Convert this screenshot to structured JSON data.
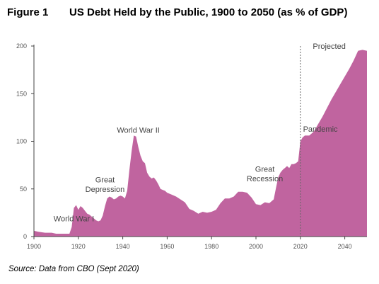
{
  "figure_label": "Figure 1",
  "source": "Source: Data from CBO (Sept 2020)",
  "chart_data": {
    "type": "area",
    "title": "US Debt Held by the Public, 1900 to 2050 (as % of GDP)",
    "xlabel": "",
    "ylabel": "",
    "xlim": [
      1900,
      2050
    ],
    "ylim": [
      0,
      200
    ],
    "x_ticks": [
      1900,
      1920,
      1940,
      1960,
      1980,
      2000,
      2020,
      2040
    ],
    "y_ticks": [
      0,
      50,
      100,
      150,
      200
    ],
    "grid": false,
    "fill_color": "#c0649f",
    "series": [
      {
        "x": [
          1900,
          1902,
          1905,
          1908,
          1910,
          1913,
          1915,
          1916,
          1917,
          1918,
          1919,
          1920,
          1921,
          1922,
          1923,
          1924,
          1925,
          1926,
          1927,
          1928,
          1929,
          1930,
          1931,
          1932,
          1933,
          1934,
          1935,
          1936,
          1937,
          1938,
          1939,
          1940,
          1941,
          1942,
          1943,
          1944,
          1945,
          1946,
          1947,
          1948,
          1949,
          1950,
          1951,
          1952,
          1953,
          1954,
          1955,
          1956,
          1957,
          1958,
          1959,
          1960,
          1962,
          1964,
          1966,
          1968,
          1970,
          1972,
          1974,
          1976,
          1978,
          1980,
          1982,
          1984,
          1986,
          1988,
          1990,
          1992,
          1994,
          1996,
          1998,
          2000,
          2002,
          2004,
          2006,
          2008,
          2009,
          2010,
          2011,
          2012,
          2013,
          2014,
          2015,
          2016,
          2017,
          2018,
          2019,
          2020,
          2021,
          2022,
          2024,
          2026,
          2028,
          2030,
          2032,
          2034,
          2036,
          2038,
          2040,
          2042,
          2044,
          2046,
          2048,
          2050
        ],
        "y": [
          6,
          5,
          4,
          4,
          3,
          3,
          3,
          3,
          10,
          30,
          33,
          28,
          32,
          30,
          27,
          24,
          23,
          21,
          19,
          17,
          16,
          17,
          22,
          32,
          40,
          42,
          41,
          39,
          40,
          42,
          43,
          42,
          40,
          48,
          70,
          90,
          106,
          105,
          94,
          85,
          79,
          77,
          67,
          63,
          61,
          62,
          59,
          55,
          50,
          49,
          48,
          46,
          44,
          42,
          39,
          36,
          29,
          27,
          24,
          26,
          25,
          26,
          28,
          35,
          40,
          40,
          42,
          47,
          47,
          46,
          41,
          34,
          33,
          36,
          35,
          39,
          51,
          62,
          67,
          70,
          72,
          74,
          72,
          76,
          76,
          77,
          79,
          100,
          104,
          106,
          106,
          110,
          118,
          126,
          135,
          144,
          152,
          160,
          168,
          176,
          185,
          195,
          205,
          195
        ]
      }
    ],
    "annotations": [
      {
        "label": "World War I",
        "x": 1918
      },
      {
        "label": "Great Depression",
        "x": 1933
      },
      {
        "label": "World War II",
        "x": 1945
      },
      {
        "label": "Great Recession",
        "x": 2009
      },
      {
        "label": "Pandemic",
        "x": 2020
      },
      {
        "label": "Projected",
        "x": 2020
      }
    ]
  }
}
